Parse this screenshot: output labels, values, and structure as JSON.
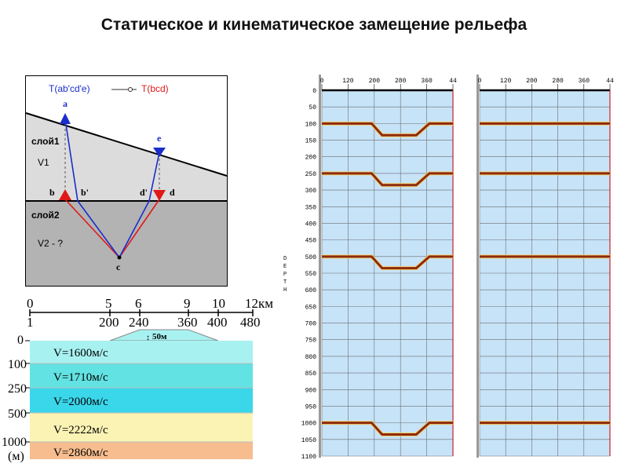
{
  "title": "Статическое и кинематическое замещение рельефа",
  "ray_diagram": {
    "legend_blue": "T(ab'cd'e)",
    "legend_red": "T(bcd)",
    "points": {
      "a": "a",
      "b": "b",
      "b_prime": "b'",
      "c": "c",
      "d": "d",
      "d_prime": "d'",
      "e": "e"
    },
    "layer1": "слой1",
    "v1": "V1",
    "layer2": "слой2",
    "v2": "V2 - ?",
    "colors": {
      "blue": "#1a2dcc",
      "red": "#e01818",
      "layer1": "#dcdcdc",
      "layer2": "#b3b3b3"
    }
  },
  "model": {
    "scale_km": [
      "0",
      "5",
      "6",
      "9",
      "10",
      "12км"
    ],
    "scale_pickets": [
      "1",
      "200",
      "240",
      "360",
      "400",
      "480"
    ],
    "relief": "50м",
    "depths": [
      "0",
      "100",
      "250",
      "500",
      "1000",
      "(м)"
    ],
    "velocities": [
      "V=1600м/с",
      "V=1710м/с",
      "V=2000м/с",
      "V=2222м/с",
      "V=2860м/с"
    ],
    "layer_colors": [
      "#a8f1f1",
      "#62e2e2",
      "#3ad6ea",
      "#fbf3b4",
      "#f7bd8e"
    ]
  },
  "sections": {
    "x_ticks": [
      "0",
      "120",
      "200",
      "280",
      "360",
      "44"
    ],
    "y_ticks": [
      "0",
      "50",
      "100",
      "150",
      "200",
      "250",
      "300",
      "350",
      "400",
      "450",
      "500",
      "550",
      "600",
      "650",
      "700",
      "750",
      "800",
      "850",
      "900",
      "950",
      "1000",
      "1050",
      "1100"
    ],
    "depth_label": [
      "D",
      "E",
      "P",
      "T",
      "H"
    ],
    "reflectors_depth": [
      100,
      250,
      500,
      1000
    ],
    "static_depression": 20,
    "colors": {
      "background": "#c6e3f8",
      "grid": "#6d6d6d",
      "reflector": "#8e2a10"
    }
  }
}
